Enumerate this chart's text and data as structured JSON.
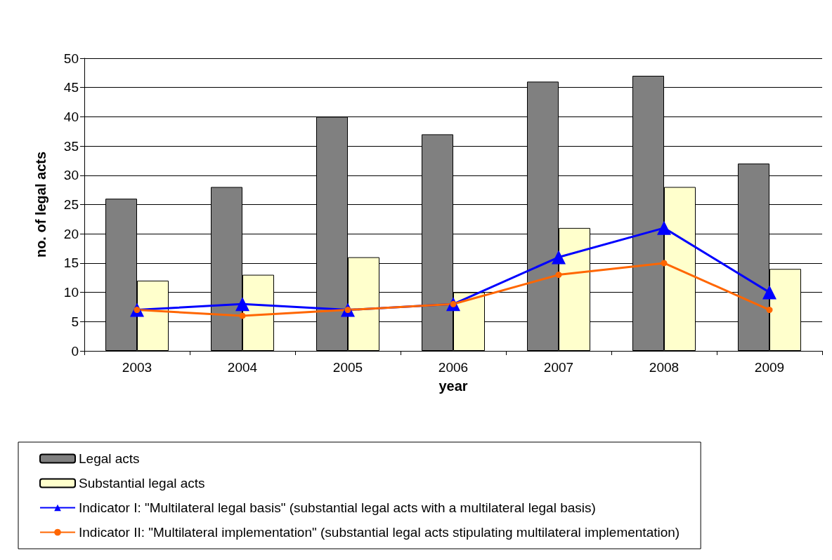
{
  "chart_data": {
    "type": "bar",
    "xlabel": "year",
    "ylabel": "no. of legal acts",
    "categories": [
      "2003",
      "2004",
      "2005",
      "2006",
      "2007",
      "2008",
      "2009"
    ],
    "series": [
      {
        "name": "Legal acts",
        "color": "#808080",
        "values": [
          26,
          28,
          40,
          37,
          46,
          47,
          32
        ]
      },
      {
        "name": "Substantial legal acts",
        "color": "#ffffcc",
        "values": [
          12,
          13,
          16,
          10,
          21,
          28,
          14
        ]
      },
      {
        "name": "Indicator I: \"Multilateral legal basis\" (substantial legal acts with a multilateral legal basis)",
        "type": "line",
        "marker": "triangle",
        "color": "#0000ff",
        "values": [
          7,
          8,
          7,
          8,
          16,
          21,
          10
        ]
      },
      {
        "name": "Indicator II: \"Multilateral implementation\" (substantial legal acts stipulating multilateral implementation)",
        "type": "line",
        "marker": "circle",
        "color": "#ff6600",
        "values": [
          7,
          6,
          7,
          8,
          13,
          15,
          7
        ]
      }
    ],
    "ylim": [
      0,
      50
    ],
    "yticks": [
      0,
      5,
      10,
      15,
      20,
      25,
      30,
      35,
      40,
      45,
      50
    ],
    "grid": "y",
    "legend": "bottom"
  }
}
